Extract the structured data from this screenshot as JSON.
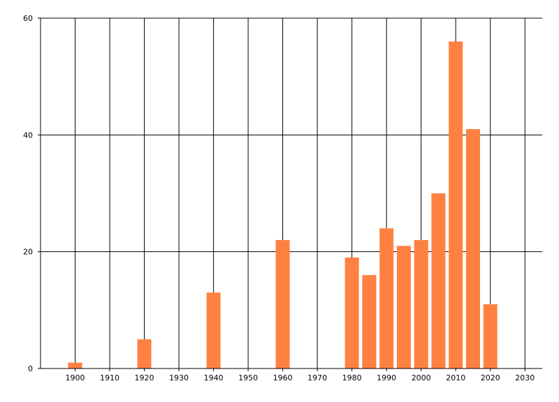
{
  "chart_data": {
    "type": "bar",
    "title": "",
    "xlabel": "",
    "ylabel": "",
    "x": [
      1900,
      1920,
      1940,
      1960,
      1980,
      1985,
      1990,
      1995,
      2000,
      2005,
      2010,
      2015,
      2020
    ],
    "values": [
      1,
      5,
      13,
      22,
      19,
      16,
      24,
      21,
      22,
      30,
      56,
      41,
      11
    ],
    "xlim": [
      1890,
      2035
    ],
    "ylim": [
      0,
      60
    ],
    "xticks": [
      "1900",
      "1910",
      "1920",
      "1930",
      "1940",
      "1950",
      "1960",
      "1970",
      "1980",
      "1990",
      "2000",
      "2010",
      "2020",
      "2030"
    ],
    "yticks": [
      "0",
      "20",
      "40",
      "60"
    ],
    "grid": true,
    "legend": "none",
    "colors": {
      "bar": "#ff8142",
      "grid": "#000000",
      "axis": "#000000",
      "background": "#ffffff"
    }
  }
}
